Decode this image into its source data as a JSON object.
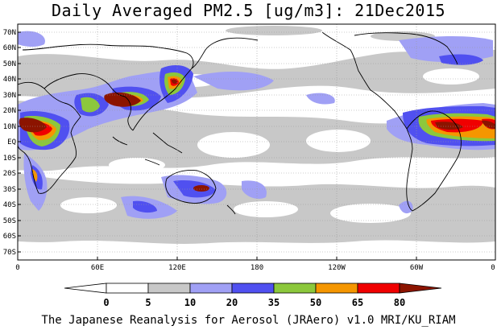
{
  "title": "Daily Averaged PM2.5 [ug/m3]: 21Dec2015",
  "footer": "The Japanese Reanalysis for Aerosol (JRAero) v1.0 MRI/KU_RIAM",
  "map": {
    "lat_labels": [
      "70N",
      "60N",
      "50N",
      "40N",
      "30N",
      "20N",
      "10N",
      "EQ",
      "10S",
      "20S",
      "30S",
      "40S",
      "50S",
      "60S",
      "70S"
    ],
    "lon_labels": [
      "0",
      "60E",
      "120E",
      "180",
      "120W",
      "60W",
      "0"
    ]
  },
  "colorbar": {
    "levels": [
      "0",
      "5",
      "10",
      "20",
      "35",
      "50",
      "65",
      "80"
    ],
    "colors": [
      "#ffffff",
      "#c8c8c8",
      "#a0a0f5",
      "#5050f0",
      "#8cc83c",
      "#f59600",
      "#f00000",
      "#8c1400"
    ]
  }
}
